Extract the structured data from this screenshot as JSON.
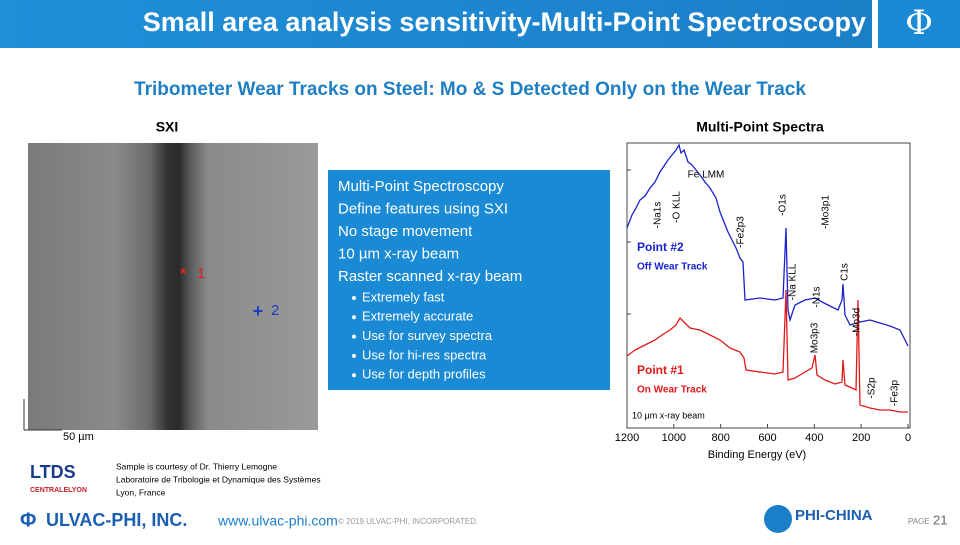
{
  "header": {
    "title": "Small area analysis sensitivity-Multi-Point Spectroscopy",
    "logo": "Φ"
  },
  "subtitle": "Tribometer Wear Tracks on Steel:  Mo & S Detected Only on the Wear Track",
  "sxi": {
    "title": "SXI",
    "markers": [
      "1",
      "2"
    ],
    "scale_bar": "50 µm"
  },
  "info_box": {
    "items": [
      "Multi-Point Spectroscopy",
      "Define features using SXI",
      "No stage movement",
      "10 µm x-ray beam",
      "Raster scanned x-ray beam"
    ],
    "bullets": [
      "Extremely fast",
      "Extremely accurate",
      "Use for survey spectra",
      "Use for hi-res spectra",
      "Use for depth profiles"
    ]
  },
  "spectra": {
    "title": "Multi-Point Spectra",
    "x_label": "Binding Energy (eV)",
    "x_ticks": [
      1200,
      1000,
      800,
      600,
      400,
      200,
      0
    ],
    "peaks": [
      "-Na1s",
      "-O KLL",
      "Fe LMM",
      "-Fe2p3",
      "-O1s",
      "-Mo3p1",
      "-Na KLL",
      "-N1s",
      "C1s",
      "-Mo3d",
      "Mo3p3",
      "-S2p",
      "-Fe3p"
    ],
    "series": [
      {
        "name": "Point #2",
        "note": "Off Wear Track"
      },
      {
        "name": "Point #1",
        "note": "On Wear Track"
      }
    ],
    "footnote": "10 µm x-ray beam"
  },
  "credit": {
    "logo": "LTDS",
    "sublogo": "CENTRALELYON",
    "lines": [
      "Sample is courtesy of Dr. Thierry Lemogne",
      "Laboratoire de Tribologie et Dynamique des Systèmes",
      "Lyon, France"
    ]
  },
  "footer": {
    "company": "ULVAC-PHI, INC.",
    "url": "www.ulvac-phi.com",
    "copyright": "© 2019 ULVAC-PHI, INCORPORATED.",
    "brand": "PHI-CHINA",
    "page_label": "PAGE",
    "page": "21"
  }
}
